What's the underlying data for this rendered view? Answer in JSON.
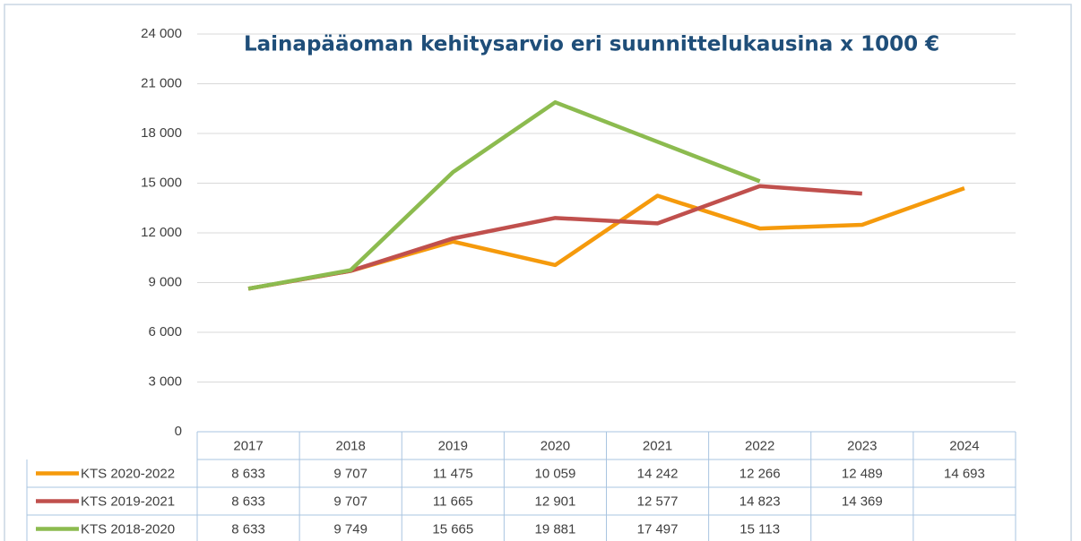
{
  "chart_data": {
    "type": "line",
    "title": "Lainapääoman kehitysarvio eri suunnittelukausina x 1000 €",
    "categories": [
      "2017",
      "2018",
      "2019",
      "2020",
      "2021",
      "2022",
      "2023",
      "2024"
    ],
    "series": [
      {
        "name": "KTS 2020-2022",
        "color": "#f59a0c",
        "values": [
          8633,
          9707,
          11475,
          10059,
          14242,
          12266,
          12489,
          14693
        ],
        "value_labels": [
          "8 633",
          "9 707",
          "11 475",
          "10 059",
          "14 242",
          "12 266",
          "12 489",
          "14 693"
        ]
      },
      {
        "name": "KTS 2019-2021",
        "color": "#c0504d",
        "values": [
          8633,
          9707,
          11665,
          12901,
          12577,
          14823,
          14369,
          null
        ],
        "value_labels": [
          "8 633",
          "9 707",
          "11 665",
          "12 901",
          "12 577",
          "14 823",
          "14 369",
          null
        ]
      },
      {
        "name": "KTS 2018-2020",
        "color": "#8cbb4f",
        "values": [
          8633,
          9749,
          15665,
          19881,
          17497,
          15113,
          null,
          null
        ],
        "value_labels": [
          "8 633",
          "9 749",
          "15 665",
          "19 881",
          "17 497",
          "15 113",
          null,
          null
        ]
      }
    ],
    "ylim": [
      0,
      24000
    ],
    "yticks": [
      0,
      {
        "value": 3000,
        "label": "3 000"
      },
      {
        "value": 6000,
        "label": "6 000"
      },
      {
        "value": 9000,
        "label": "9 000"
      },
      {
        "value": 12000,
        "label": "12 000"
      },
      {
        "value": 15000,
        "label": "15 000"
      },
      {
        "value": 18000,
        "label": "18 000"
      },
      {
        "value": 21000,
        "label": "21 000"
      },
      {
        "value": 24000,
        "label": "24 000"
      }
    ],
    "grid": true
  }
}
